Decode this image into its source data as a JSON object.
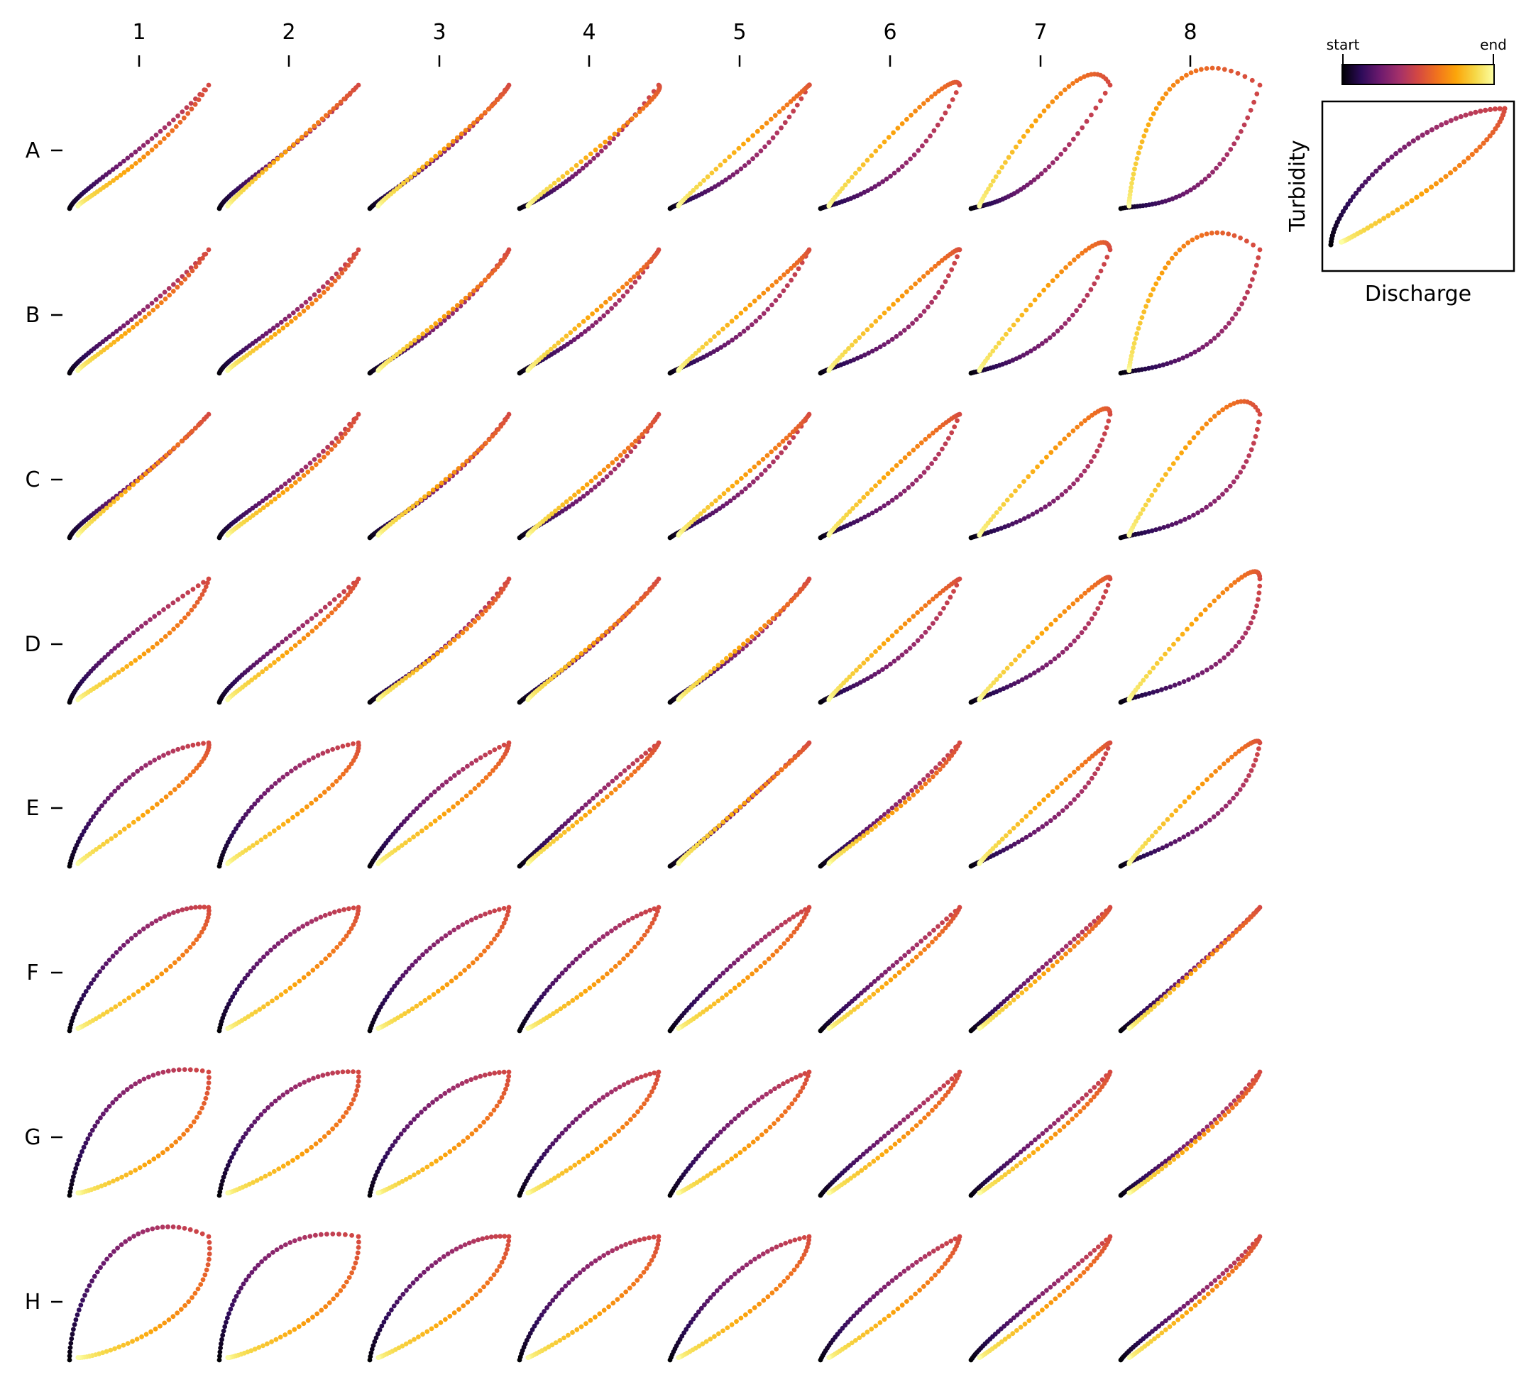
{
  "chart_data": {
    "type": "scatter",
    "description_kind": "grid of hysteresis loops (Turbidity vs Discharge)",
    "col_labels": [
      "1",
      "2",
      "3",
      "4",
      "5",
      "6",
      "7",
      "8"
    ],
    "row_labels": [
      "A",
      "B",
      "C",
      "D",
      "E",
      "F",
      "G",
      "H"
    ],
    "colormap": {
      "name": "inferno",
      "start_label": "start",
      "end_label": "end",
      "stops": [
        "#000004",
        "#2d0b59",
        "#6d1a6e",
        "#a3306a",
        "#d44842",
        "#f1731d",
        "#fca50a",
        "#f6d746",
        "#fcffa4"
      ]
    },
    "legend_panel": {
      "xlabel": "Discharge",
      "ylabel": "Turbidity",
      "loop": {
        "a": [
          0.02,
          0.35
        ],
        "b": [
          0.55,
          1.0
        ],
        "c": [
          0.95,
          0.62
        ],
        "d": [
          0.05,
          0.0
        ]
      }
    },
    "axis_ranges": {
      "x": [
        0,
        1
      ],
      "y": [
        0,
        1
      ]
    },
    "grid": false,
    "loops": [
      [
        {
          "a": [
            0.05,
            0.15
          ],
          "b": [
            0.55,
            0.45
          ],
          "c": [
            0.68,
            0.42
          ],
          "d": [
            0.05,
            0.05
          ]
        },
        {
          "a": [
            0.05,
            0.15
          ],
          "b": [
            0.55,
            0.45
          ],
          "c": [
            0.75,
            0.72
          ],
          "d": [
            0.05,
            0.05
          ]
        },
        {
          "a": [
            0.1,
            0.12
          ],
          "b": [
            0.6,
            0.42
          ],
          "c": [
            0.9,
            0.78
          ],
          "d": [
            0.05,
            0.05
          ]
        },
        {
          "a": [
            0.15,
            0.08
          ],
          "b": [
            0.5,
            0.25
          ],
          "c": [
            1.1,
            0.92
          ],
          "d": [
            0.05,
            0.05
          ]
        },
        {
          "a": [
            0.1,
            0.08
          ],
          "b": [
            0.6,
            0.18
          ],
          "c": [
            1.05,
            1.05
          ],
          "d": [
            0.05,
            0.05
          ]
        },
        {
          "a": [
            0.1,
            0.05
          ],
          "b": [
            0.65,
            0.12
          ],
          "c": [
            0.95,
            1.2
          ],
          "d": [
            0.05,
            0.05
          ]
        },
        {
          "a": [
            0.15,
            0.05
          ],
          "b": [
            0.5,
            0.05
          ],
          "c": [
            0.8,
            1.45
          ],
          "d": [
            0.05,
            0.05
          ]
        },
        {
          "a": [
            0.2,
            0.05
          ],
          "b": [
            0.7,
            -0.05
          ],
          "c": [
            0.2,
            1.6
          ],
          "d": [
            0.05,
            0.05
          ]
        }
      ],
      [
        {
          "a": [
            0.05,
            0.15
          ],
          "b": [
            0.55,
            0.45
          ],
          "c": [
            0.7,
            0.5
          ],
          "d": [
            0.05,
            0.05
          ]
        },
        {
          "a": [
            0.05,
            0.15
          ],
          "b": [
            0.55,
            0.4
          ],
          "c": [
            0.78,
            0.55
          ],
          "d": [
            0.05,
            0.05
          ]
        },
        {
          "a": [
            0.1,
            0.1
          ],
          "b": [
            0.6,
            0.35
          ],
          "c": [
            0.9,
            0.72
          ],
          "d": [
            0.05,
            0.05
          ]
        },
        {
          "a": [
            0.15,
            0.12
          ],
          "b": [
            0.6,
            0.3
          ],
          "c": [
            0.95,
            0.85
          ],
          "d": [
            0.05,
            0.05
          ]
        },
        {
          "a": [
            0.1,
            0.08
          ],
          "b": [
            0.65,
            0.22
          ],
          "c": [
            1.0,
            0.95
          ],
          "d": [
            0.05,
            0.05
          ]
        },
        {
          "a": [
            0.1,
            0.08
          ],
          "b": [
            0.75,
            0.18
          ],
          "c": [
            0.95,
            1.05
          ],
          "d": [
            0.05,
            0.05
          ]
        },
        {
          "a": [
            0.15,
            0.05
          ],
          "b": [
            0.7,
            0.12
          ],
          "c": [
            0.95,
            1.35
          ],
          "d": [
            0.05,
            0.05
          ]
        },
        {
          "a": [
            0.2,
            0.05
          ],
          "b": [
            0.85,
            0.05
          ],
          "c": [
            0.3,
            1.6
          ],
          "d": [
            0.05,
            0.05
          ]
        }
      ],
      [
        {
          "a": [
            0.05,
            0.15
          ],
          "b": [
            0.55,
            0.45
          ],
          "c": [
            0.78,
            0.72
          ],
          "d": [
            0.05,
            0.05
          ]
        },
        {
          "a": [
            0.05,
            0.15
          ],
          "b": [
            0.55,
            0.4
          ],
          "c": [
            0.78,
            0.55
          ],
          "d": [
            0.05,
            0.05
          ]
        },
        {
          "a": [
            0.1,
            0.12
          ],
          "b": [
            0.6,
            0.38
          ],
          "c": [
            0.85,
            0.68
          ],
          "d": [
            0.05,
            0.05
          ]
        },
        {
          "a": [
            0.12,
            0.12
          ],
          "b": [
            0.6,
            0.3
          ],
          "c": [
            0.85,
            0.72
          ],
          "d": [
            0.05,
            0.05
          ]
        },
        {
          "a": [
            0.12,
            0.1
          ],
          "b": [
            0.6,
            0.28
          ],
          "c": [
            0.92,
            0.85
          ],
          "d": [
            0.05,
            0.05
          ]
        },
        {
          "a": [
            0.1,
            0.08
          ],
          "b": [
            0.75,
            0.25
          ],
          "c": [
            0.85,
            0.95
          ],
          "d": [
            0.05,
            0.05
          ]
        },
        {
          "a": [
            0.12,
            0.05
          ],
          "b": [
            0.85,
            0.2
          ],
          "c": [
            1.0,
            1.3
          ],
          "d": [
            0.05,
            0.05
          ]
        },
        {
          "a": [
            0.12,
            0.05
          ],
          "b": [
            0.9,
            0.08
          ],
          "c": [
            0.8,
            1.5
          ],
          "d": [
            0.05,
            0.05
          ]
        }
      ],
      [
        {
          "a": [
            0.05,
            0.2
          ],
          "b": [
            0.45,
            0.6
          ],
          "c": [
            0.9,
            0.55
          ],
          "d": [
            0.05,
            0.05
          ]
        },
        {
          "a": [
            0.05,
            0.18
          ],
          "b": [
            0.5,
            0.5
          ],
          "c": [
            0.85,
            0.65
          ],
          "d": [
            0.05,
            0.05
          ]
        },
        {
          "a": [
            0.12,
            0.12
          ],
          "b": [
            0.6,
            0.4
          ],
          "c": [
            0.85,
            0.62
          ],
          "d": [
            0.05,
            0.05
          ]
        },
        {
          "a": [
            0.15,
            0.15
          ],
          "b": [
            0.55,
            0.4
          ],
          "c": [
            0.82,
            0.7
          ],
          "d": [
            0.05,
            0.05
          ]
        },
        {
          "a": [
            0.12,
            0.12
          ],
          "b": [
            0.55,
            0.35
          ],
          "c": [
            0.88,
            0.75
          ],
          "d": [
            0.05,
            0.05
          ]
        },
        {
          "a": [
            0.12,
            0.1
          ],
          "b": [
            0.7,
            0.25
          ],
          "c": [
            0.85,
            0.92
          ],
          "d": [
            0.05,
            0.05
          ]
        },
        {
          "a": [
            0.12,
            0.08
          ],
          "b": [
            0.8,
            0.25
          ],
          "c": [
            1.0,
            1.15
          ],
          "d": [
            0.05,
            0.05
          ]
        },
        {
          "a": [
            0.1,
            0.08
          ],
          "b": [
            1.0,
            0.15
          ],
          "c": [
            1.0,
            1.35
          ],
          "d": [
            0.05,
            0.05
          ]
        }
      ],
      [
        {
          "a": [
            0.05,
            0.3
          ],
          "b": [
            0.45,
            0.95
          ],
          "c": [
            1.05,
            0.75
          ],
          "d": [
            0.05,
            0.05
          ]
        },
        {
          "a": [
            0.05,
            0.3
          ],
          "b": [
            0.45,
            0.9
          ],
          "c": [
            1.05,
            0.7
          ],
          "d": [
            0.05,
            0.05
          ]
        },
        {
          "a": [
            0.1,
            0.2
          ],
          "b": [
            0.5,
            0.75
          ],
          "c": [
            0.98,
            0.7
          ],
          "d": [
            0.05,
            0.05
          ]
        },
        {
          "a": [
            0.15,
            0.15
          ],
          "b": [
            0.55,
            0.6
          ],
          "c": [
            0.9,
            0.75
          ],
          "d": [
            0.05,
            0.05
          ]
        },
        {
          "a": [
            0.15,
            0.12
          ],
          "b": [
            0.5,
            0.45
          ],
          "c": [
            0.9,
            0.85
          ],
          "d": [
            0.05,
            0.05
          ]
        },
        {
          "a": [
            0.12,
            0.12
          ],
          "b": [
            0.6,
            0.5
          ],
          "c": [
            0.85,
            0.65
          ],
          "d": [
            0.05,
            0.05
          ]
        },
        {
          "a": [
            0.12,
            0.08
          ],
          "b": [
            0.8,
            0.35
          ],
          "c": [
            0.95,
            1.0
          ],
          "d": [
            0.05,
            0.05
          ]
        },
        {
          "a": [
            0.1,
            0.08
          ],
          "b": [
            0.9,
            0.3
          ],
          "c": [
            0.95,
            1.15
          ],
          "d": [
            0.05,
            0.05
          ]
        }
      ],
      [
        {
          "a": [
            0.05,
            0.35
          ],
          "b": [
            0.55,
            1.05
          ],
          "c": [
            1.05,
            0.62
          ],
          "d": [
            0.05,
            0.0
          ]
        },
        {
          "a": [
            0.05,
            0.35
          ],
          "b": [
            0.5,
            0.95
          ],
          "c": [
            1.0,
            0.62
          ],
          "d": [
            0.05,
            0.0
          ]
        },
        {
          "a": [
            0.08,
            0.3
          ],
          "b": [
            0.5,
            0.9
          ],
          "c": [
            0.95,
            0.55
          ],
          "d": [
            0.05,
            0.0
          ]
        },
        {
          "a": [
            0.1,
            0.25
          ],
          "b": [
            0.55,
            0.85
          ],
          "c": [
            0.9,
            0.55
          ],
          "d": [
            0.05,
            0.0
          ]
        },
        {
          "a": [
            0.12,
            0.2
          ],
          "b": [
            0.6,
            0.75
          ],
          "c": [
            0.88,
            0.62
          ],
          "d": [
            0.05,
            0.0
          ]
        },
        {
          "a": [
            0.12,
            0.15
          ],
          "b": [
            0.55,
            0.55
          ],
          "c": [
            0.9,
            0.72
          ],
          "d": [
            0.05,
            0.0
          ]
        },
        {
          "a": [
            0.12,
            0.12
          ],
          "b": [
            0.6,
            0.6
          ],
          "c": [
            0.95,
            0.85
          ],
          "d": [
            0.05,
            0.0
          ]
        },
        {
          "a": [
            0.12,
            0.12
          ],
          "b": [
            0.7,
            0.65
          ],
          "c": [
            0.9,
            0.85
          ],
          "d": [
            0.05,
            0.0
          ]
        }
      ],
      [
        {
          "a": [
            0.05,
            0.4
          ],
          "b": [
            0.35,
            1.15
          ],
          "c": [
            1.05,
            0.35
          ],
          "d": [
            0.08,
            0.0
          ]
        },
        {
          "a": [
            0.05,
            0.4
          ],
          "b": [
            0.45,
            1.05
          ],
          "c": [
            1.05,
            0.45
          ],
          "d": [
            0.05,
            0.0
          ]
        },
        {
          "a": [
            0.05,
            0.35
          ],
          "b": [
            0.5,
            1.0
          ],
          "c": [
            1.0,
            0.5
          ],
          "d": [
            0.05,
            0.0
          ]
        },
        {
          "a": [
            0.1,
            0.3
          ],
          "b": [
            0.55,
            0.9
          ],
          "c": [
            0.95,
            0.55
          ],
          "d": [
            0.05,
            0.0
          ]
        },
        {
          "a": [
            0.12,
            0.25
          ],
          "b": [
            0.55,
            0.82
          ],
          "c": [
            0.9,
            0.55
          ],
          "d": [
            0.05,
            0.0
          ]
        },
        {
          "a": [
            0.12,
            0.18
          ],
          "b": [
            0.6,
            0.6
          ],
          "c": [
            0.9,
            0.65
          ],
          "d": [
            0.05,
            0.0
          ]
        },
        {
          "a": [
            0.12,
            0.15
          ],
          "b": [
            0.6,
            0.55
          ],
          "c": [
            0.92,
            0.7
          ],
          "d": [
            0.05,
            0.0
          ]
        },
        {
          "a": [
            0.12,
            0.12
          ],
          "b": [
            0.65,
            0.5
          ],
          "c": [
            0.9,
            0.7
          ],
          "d": [
            0.05,
            0.0
          ]
        }
      ],
      [
        {
          "a": [
            0.0,
            0.45
          ],
          "b": [
            0.35,
            1.35
          ],
          "c": [
            1.1,
            0.3
          ],
          "d": [
            0.15,
            0.0
          ]
        },
        {
          "a": [
            0.02,
            0.45
          ],
          "b": [
            0.3,
            1.15
          ],
          "c": [
            1.05,
            0.35
          ],
          "d": [
            0.08,
            0.0
          ]
        },
        {
          "a": [
            0.05,
            0.4
          ],
          "b": [
            0.55,
            1.05
          ],
          "c": [
            1.0,
            0.5
          ],
          "d": [
            0.05,
            0.0
          ]
        },
        {
          "a": [
            0.08,
            0.35
          ],
          "b": [
            0.5,
            0.95
          ],
          "c": [
            1.0,
            0.55
          ],
          "d": [
            0.05,
            0.0
          ]
        },
        {
          "a": [
            0.1,
            0.3
          ],
          "b": [
            0.5,
            0.9
          ],
          "c": [
            1.0,
            0.6
          ],
          "d": [
            0.05,
            0.0
          ]
        },
        {
          "a": [
            0.1,
            0.25
          ],
          "b": [
            0.55,
            0.75
          ],
          "c": [
            0.95,
            0.65
          ],
          "d": [
            0.05,
            0.0
          ]
        },
        {
          "a": [
            0.12,
            0.2
          ],
          "b": [
            0.6,
            0.6
          ],
          "c": [
            0.92,
            0.7
          ],
          "d": [
            0.05,
            0.0
          ]
        },
        {
          "a": [
            0.12,
            0.18
          ],
          "b": [
            0.65,
            0.55
          ],
          "c": [
            0.9,
            0.72
          ],
          "d": [
            0.05,
            0.0
          ]
        }
      ]
    ]
  }
}
